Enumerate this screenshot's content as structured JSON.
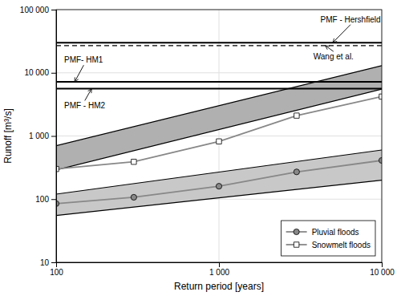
{
  "chart_data": {
    "type": "line",
    "xlabel": "Return period [years]",
    "ylabel": "Runoff [m³/s]",
    "log": true,
    "grid": true,
    "legend": "lower right",
    "xlim": [
      100,
      10000
    ],
    "ylim": [
      10,
      100000
    ],
    "xticks": [
      100,
      {
        "value": 1000,
        "label": "1 000"
      },
      {
        "value": 10000,
        "label": "10 000"
      }
    ],
    "yticks": [
      10,
      100,
      {
        "value": 1000,
        "label": "1 000"
      },
      {
        "value": 10000,
        "label": "10 000"
      },
      {
        "value": 100000,
        "label": "100 000"
      }
    ],
    "series": [
      {
        "name": "Pluvial floods",
        "color": "#888888",
        "marker": "circle",
        "x": [
          100,
          300,
          1000,
          3000,
          10000
        ],
        "values": [
          85,
          107,
          160,
          270,
          410
        ]
      },
      {
        "name": "Snowmelt floods",
        "color": "#888888",
        "marker": "square-open",
        "x": [
          100,
          300,
          1000,
          3000,
          10000
        ],
        "values": [
          300,
          390,
          820,
          2100,
          4200
        ]
      }
    ],
    "bands": [
      {
        "x": [
          100,
          10000
        ],
        "lower": [
          290,
          5500
        ],
        "upper": [
          700,
          13000
        ],
        "color": "#b0b0b0"
      },
      {
        "x": [
          100,
          10000
        ],
        "lower": [
          55,
          200
        ],
        "upper": [
          120,
          600
        ],
        "color": "#c8c8c8"
      }
    ],
    "hlines": [
      {
        "value": 30000,
        "color": "#000000",
        "line_style": "solid"
      },
      {
        "value": 27000,
        "color": "#000000",
        "line_style": "dashed"
      },
      {
        "value": 7200,
        "color": "#000000",
        "line_style": "solid"
      },
      {
        "value": 5600,
        "color": "#000000",
        "line_style": "solid"
      }
    ],
    "annotations": [
      {
        "text": "PMF - Hershfield",
        "x": 5000,
        "y": 30000,
        "text_x": 4200,
        "text_y": 70000
      },
      {
        "text": "Wang et al.",
        "x": 4500,
        "y": 27000,
        "text_x": 3800,
        "text_y": 18000
      },
      {
        "text": "PMF- HM1",
        "x": 130,
        "y": 7200,
        "text_x": 112,
        "text_y": 16000
      },
      {
        "text": "PMF - HM2",
        "x": 165,
        "y": 5600,
        "text_x": 112,
        "text_y": 3000
      }
    ]
  }
}
